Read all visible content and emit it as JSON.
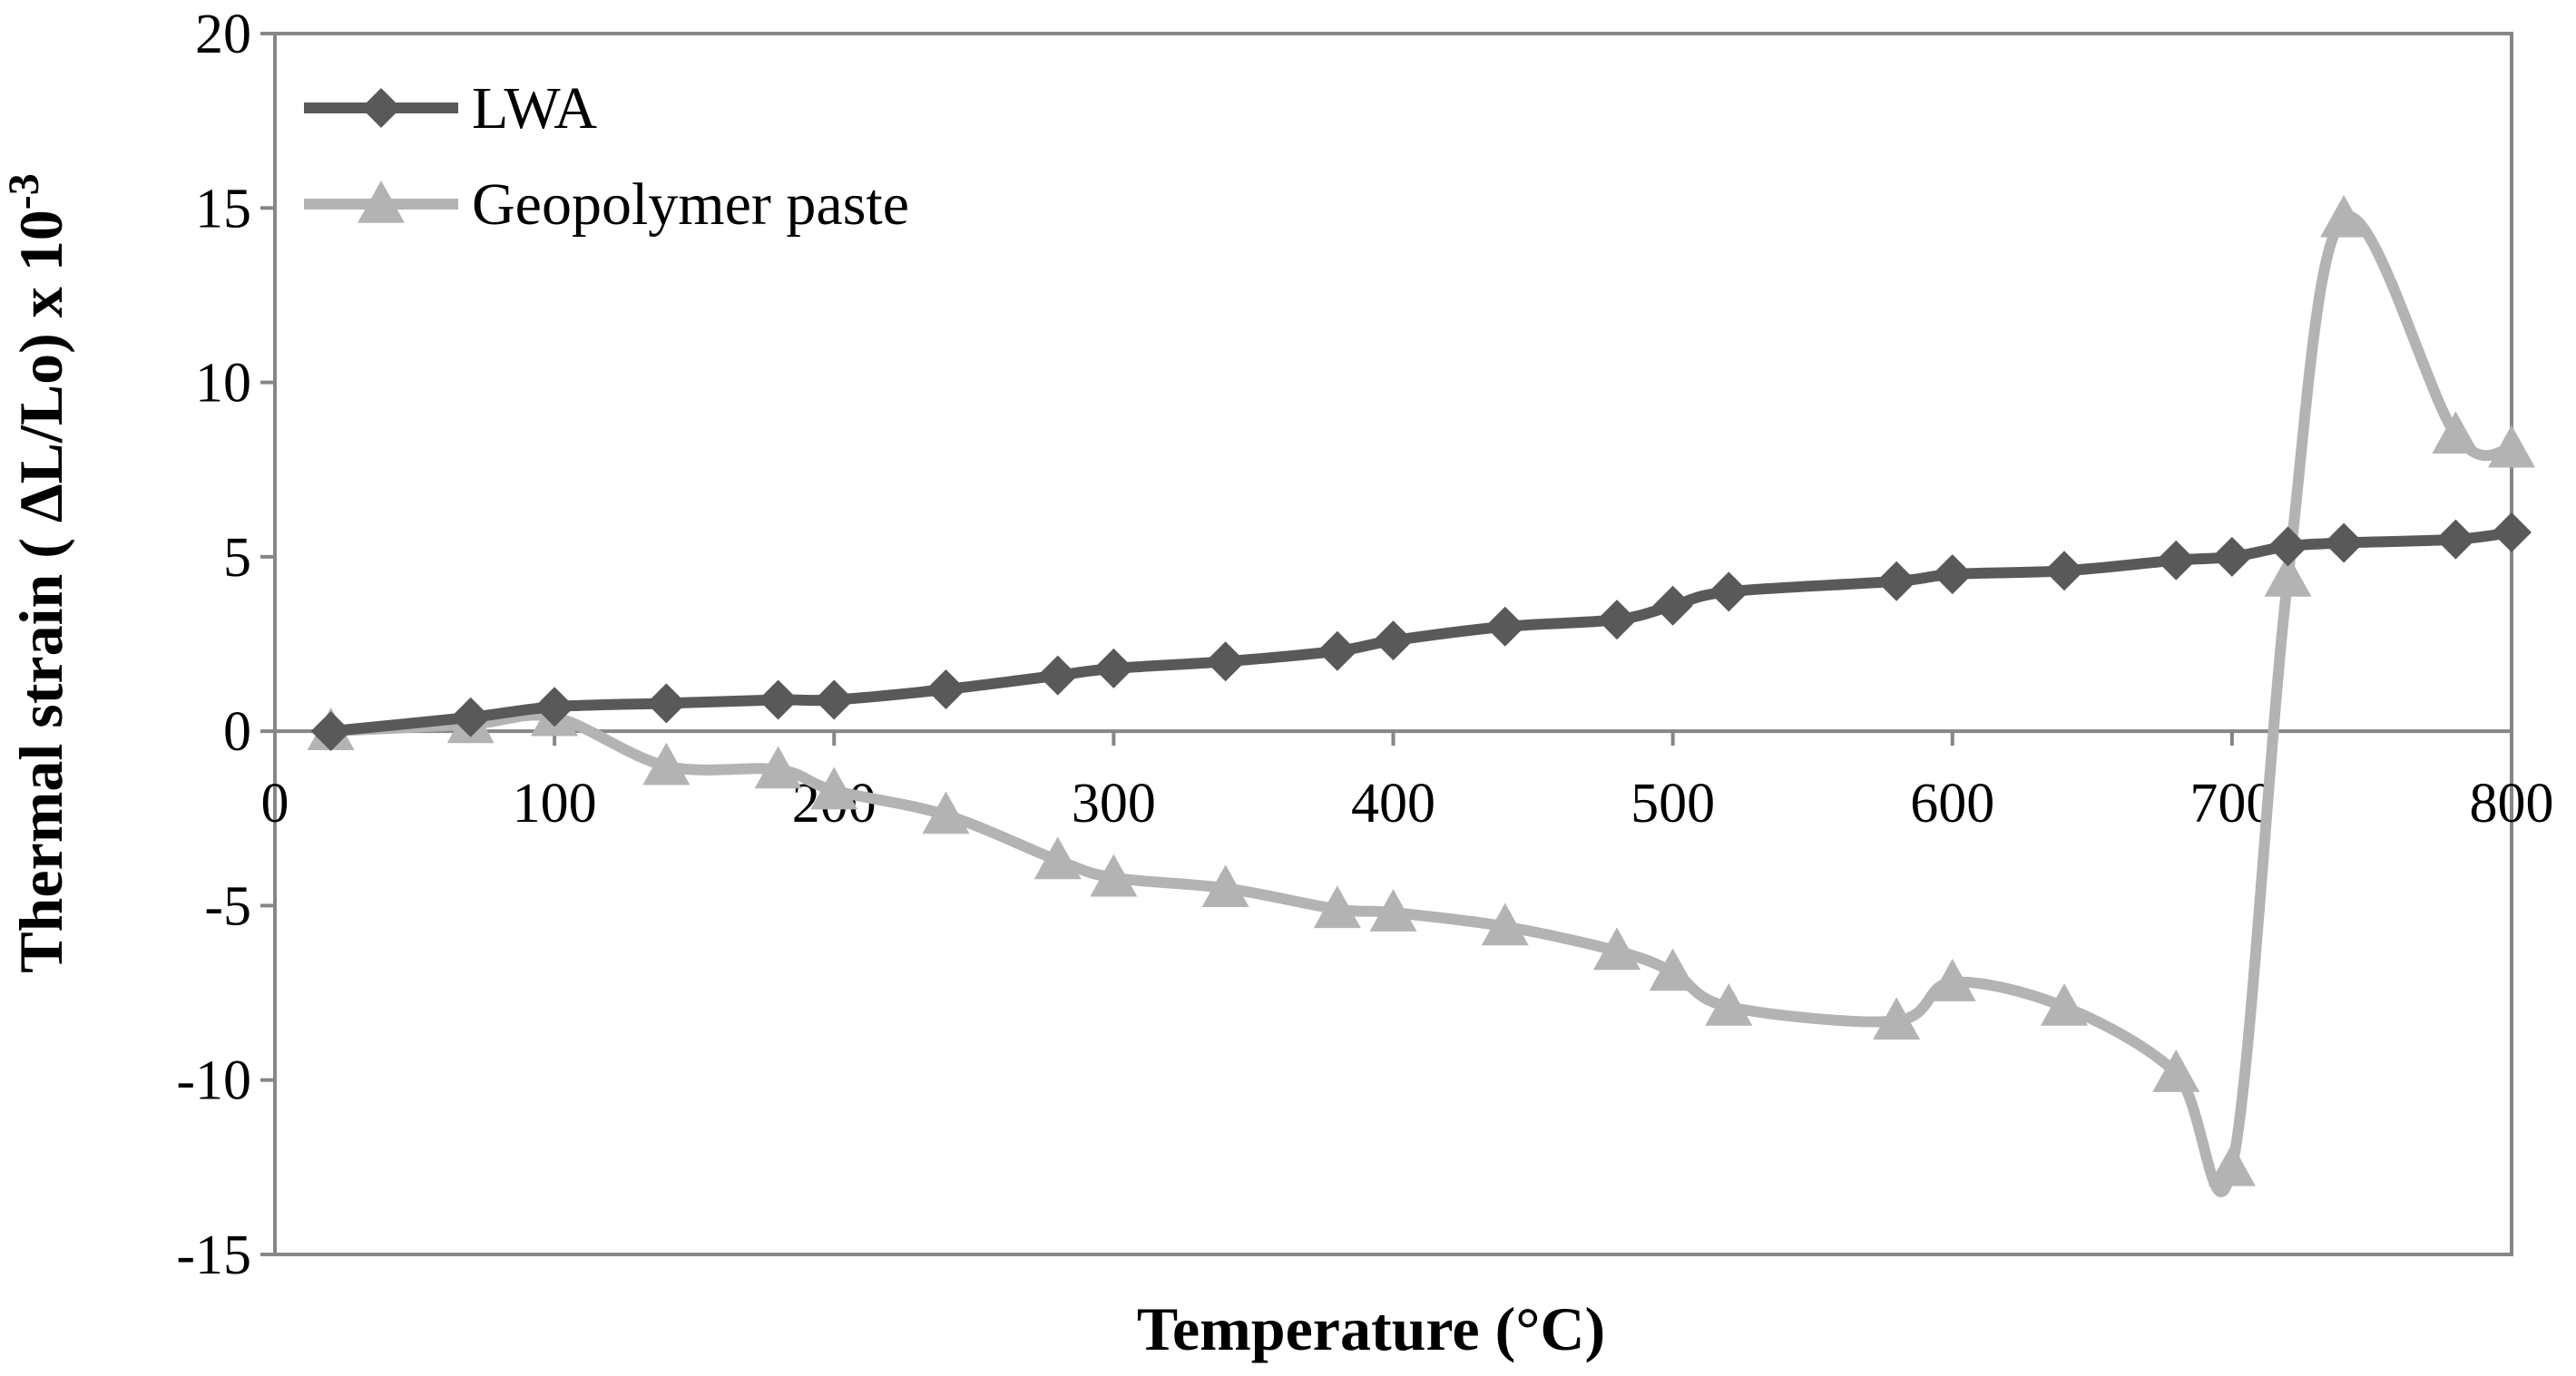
{
  "chart_data": {
    "type": "line",
    "title": "",
    "xlabel": "Temperature (°C)",
    "ylabel_main": "Thermal strain ( ΔL/Lo) x 10",
    "ylabel_exponent": "-3",
    "xlim": [
      0,
      800
    ],
    "ylim": [
      -15,
      20
    ],
    "xticks": [
      "0",
      "100",
      "200",
      "300",
      "400",
      "500",
      "600",
      "700",
      "800"
    ],
    "yticks": [
      "20",
      "15",
      "10",
      "5",
      "0",
      "-5",
      "-10",
      "-15"
    ],
    "grid": false,
    "legend_position": "top-left",
    "series": [
      {
        "name": "LWA",
        "color": "#595959",
        "marker": "diamond",
        "x": [
          20,
          70,
          100,
          140,
          180,
          200,
          240,
          280,
          300,
          340,
          380,
          400,
          440,
          480,
          500,
          520,
          580,
          600,
          640,
          680,
          700,
          720,
          740,
          780,
          800
        ],
        "y": [
          0,
          0.4,
          0.7,
          0.8,
          0.9,
          0.9,
          1.2,
          1.6,
          1.8,
          2.0,
          2.3,
          2.6,
          3.0,
          3.2,
          3.6,
          4.0,
          4.3,
          4.5,
          4.6,
          4.9,
          5.0,
          5.3,
          5.4,
          5.5,
          5.7
        ]
      },
      {
        "name": "Geopolymer paste",
        "color": "#b3b3b3",
        "marker": "triangle",
        "x": [
          20,
          70,
          100,
          140,
          180,
          200,
          240,
          280,
          300,
          340,
          380,
          400,
          440,
          480,
          500,
          520,
          580,
          600,
          640,
          680,
          700,
          720,
          740,
          780,
          800
        ],
        "y": [
          0,
          0.2,
          0.4,
          -1.0,
          -1.1,
          -1.7,
          -2.4,
          -3.7,
          -4.2,
          -4.5,
          -5.1,
          -5.2,
          -5.6,
          -6.3,
          -6.9,
          -7.9,
          -8.3,
          -7.2,
          -7.9,
          -9.8,
          -12.5,
          4.4,
          14.7,
          8.5,
          8.1
        ]
      }
    ]
  }
}
